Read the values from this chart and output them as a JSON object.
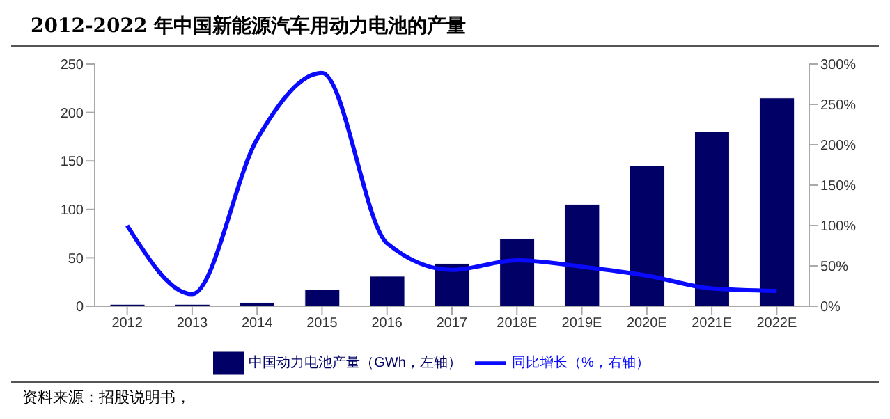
{
  "chart_data": {
    "type": "bar",
    "title": "2012-2022 年中国新能源汽车用动力电池的产量",
    "categories": [
      "2012",
      "2013",
      "2014",
      "2015",
      "2016",
      "2017",
      "2018E",
      "2019E",
      "2020E",
      "2021E",
      "2022E"
    ],
    "series": [
      {
        "name": "中国动力电池产量（GWh，左轴）",
        "color": "#000066",
        "values": [
          2,
          2,
          4,
          17,
          31,
          44,
          70,
          105,
          145,
          180,
          215
        ]
      },
      {
        "name": "同比增长（%，右轴）",
        "type": "line",
        "axis": "y2",
        "color": "#0a0aff",
        "values": [
          100,
          15,
          207,
          289,
          78,
          45,
          57,
          49,
          38,
          22,
          19
        ]
      }
    ],
    "ylim": [
      0,
      250
    ],
    "yticks": [
      0,
      50,
      100,
      150,
      200,
      250
    ],
    "y2lim": [
      0,
      300
    ],
    "y2ticks": [
      {
        "value": 0,
        "label": "0%"
      },
      {
        "value": 50,
        "label": "50%"
      },
      {
        "value": 100,
        "label": "100%"
      },
      {
        "value": 150,
        "label": "150%"
      },
      {
        "value": 200,
        "label": "200%"
      },
      {
        "value": 250,
        "label": "250%"
      },
      {
        "value": 300,
        "label": "300%"
      }
    ],
    "grid": false,
    "legend": "bottom",
    "marker": "none",
    "line_style": "solid",
    "annotations": [
      "资料来源：招股说明书，"
    ]
  }
}
